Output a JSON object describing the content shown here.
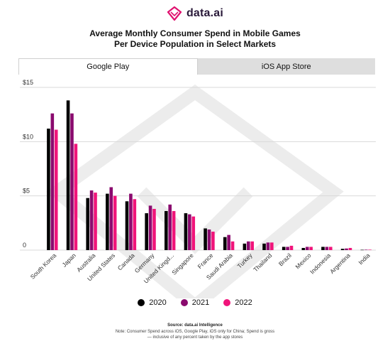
{
  "brand": {
    "name": "data.ai"
  },
  "title_line1": "Average Monthly Consumer Spend in Mobile Games",
  "title_line2": "Per Device Population in Select Markets",
  "tabs": [
    {
      "label": "Google Play",
      "active": true
    },
    {
      "label": "iOS App Store",
      "active": false
    }
  ],
  "legend": [
    {
      "label": "2020",
      "color": "#000000"
    },
    {
      "label": "2021",
      "color": "#8a0a6e"
    },
    {
      "label": "2022",
      "color": "#f0147a"
    }
  ],
  "source": "Source: data.ai Intelligence",
  "note": "Note: Consumer Spend across iOS, Google Play, iOS only for China; Spend is gross — inclusive of any percent taken by the app stores",
  "chart_data": {
    "type": "bar",
    "title": "Average Monthly Consumer Spend in Mobile Games Per Device Population in Select Markets",
    "categories": [
      "South Korea",
      "Japan",
      "Australia",
      "United States",
      "Canada",
      "Germany",
      "United Kingd...",
      "Singapore",
      "France",
      "Saudi Arabia",
      "Turkey",
      "Thailand",
      "Brazil",
      "Mexico",
      "Indonesia",
      "Argentina",
      "India"
    ],
    "series": [
      {
        "name": "2020",
        "values": [
          11.2,
          13.8,
          4.8,
          5.2,
          4.5,
          3.4,
          3.6,
          3.4,
          2.0,
          1.2,
          0.6,
          0.6,
          0.3,
          0.2,
          0.3,
          0.12,
          0.03
        ]
      },
      {
        "name": "2021",
        "values": [
          12.6,
          12.6,
          5.5,
          5.8,
          5.2,
          4.1,
          4.2,
          3.3,
          1.9,
          1.4,
          0.8,
          0.7,
          0.3,
          0.3,
          0.3,
          0.15,
          0.04
        ]
      },
      {
        "name": "2022",
        "values": [
          11.1,
          9.8,
          5.3,
          5.0,
          4.7,
          3.8,
          3.6,
          3.1,
          1.7,
          0.8,
          0.8,
          0.7,
          0.4,
          0.3,
          0.3,
          0.2,
          0.04
        ]
      }
    ],
    "yticks": [
      "$15",
      "$10",
      "$5",
      "0"
    ],
    "ytick_values": [
      15,
      10,
      5,
      0
    ],
    "ylim": [
      0,
      15
    ],
    "colors": [
      "#000000",
      "#8a0a6e",
      "#f0147a"
    ],
    "grid": true,
    "legend_position": "bottom"
  }
}
